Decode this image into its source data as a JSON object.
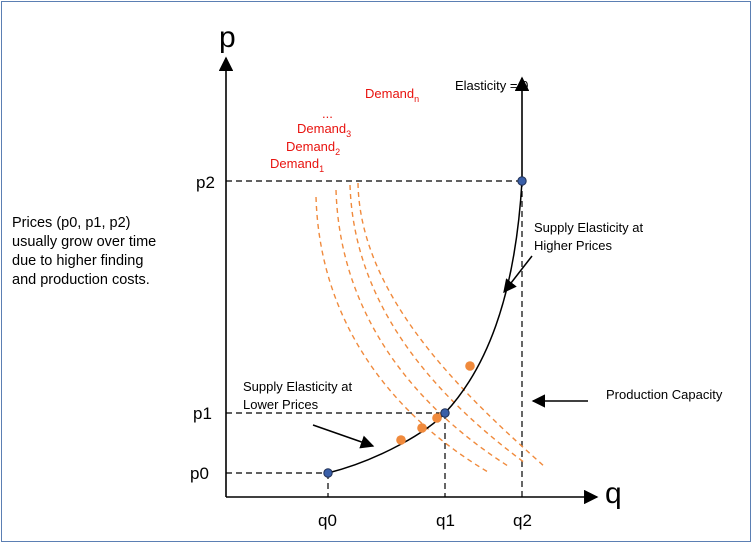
{
  "axes": {
    "y_letter": "p",
    "x_letter": "q"
  },
  "price_ticks": [
    "p2",
    "p1",
    "p0"
  ],
  "quantity_ticks": [
    "q0",
    "q1",
    "q2"
  ],
  "demand_labels": [
    {
      "base": "Demand",
      "sub": "n"
    },
    {
      "base": "...",
      "sub": ""
    },
    {
      "base": "Demand",
      "sub": "3"
    },
    {
      "base": "Demand",
      "sub": "2"
    },
    {
      "base": "Demand",
      "sub": "1"
    }
  ],
  "annotations": {
    "elasticity_zero": "Elasticity = 0",
    "supply_high": [
      "Supply Elasticity at",
      "Higher Prices"
    ],
    "supply_low": [
      "Supply Elasticity at",
      "Lower Prices"
    ],
    "production_capacity": "Production Capacity"
  },
  "side_note": [
    "Prices (p0, p1, p2)",
    "usually grow over time",
    "due to higher finding",
    "and production costs."
  ],
  "colors": {
    "axis": "#000000",
    "supply_curve": "#000000",
    "demand_curves": "#f08a3c",
    "demand_text": "#e8130f",
    "equilibrium_point": "#f08a3c",
    "key_point": "#3a5fa8",
    "frame": "#5b7fb3"
  }
}
